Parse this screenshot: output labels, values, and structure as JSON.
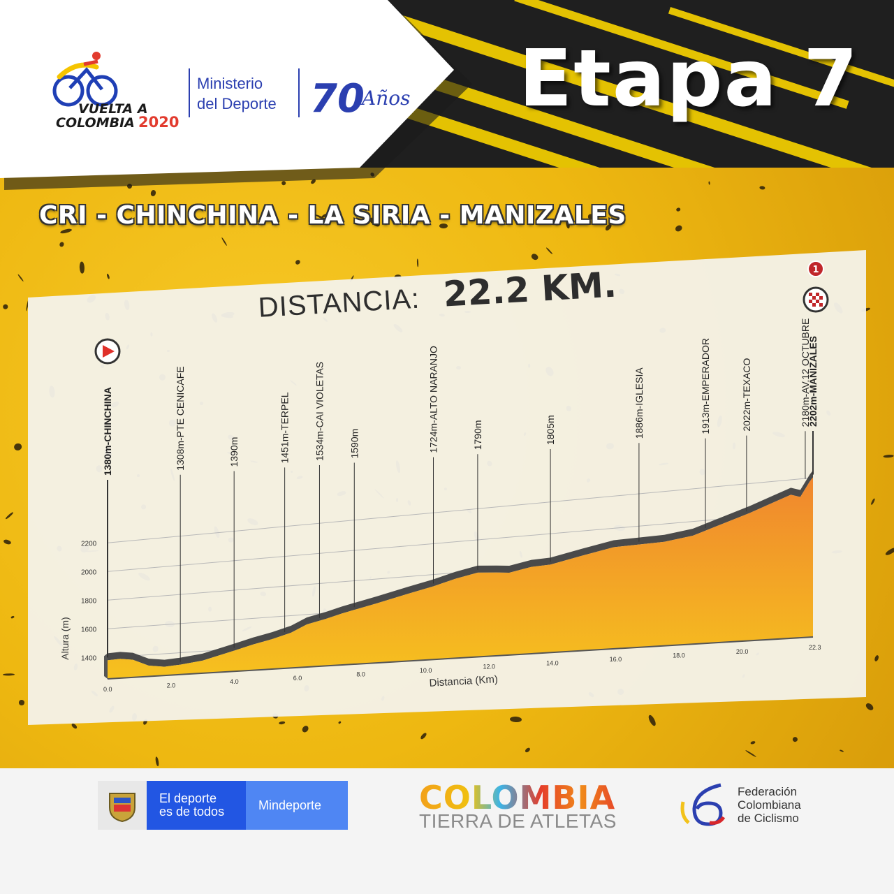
{
  "header": {
    "logo": {
      "line1": "VUELTA A",
      "line2": "COLOMBIA",
      "year": "2020"
    },
    "ministry": {
      "line1": "Ministerio",
      "line2": "del Deporte"
    },
    "anniversary": {
      "number": "70",
      "word": "Años"
    },
    "stage_label": "Etapa",
    "stage_number": "7"
  },
  "route_title": "CRI - CHINCHINA - LA SIRIA - MANIZALES",
  "distance": {
    "label": "DISTANCIA:",
    "value": "22.2 KM."
  },
  "badges": {
    "category": "1"
  },
  "chart_data": {
    "type": "area",
    "xlabel": "Distancia (Km)",
    "ylabel": "Altura (m)",
    "xlim": [
      0,
      22.3
    ],
    "ylim": [
      1250,
      2300
    ],
    "x_ticks": [
      "0.0",
      "2.0",
      "4.0",
      "6.0",
      "8.0",
      "10.0",
      "12.0",
      "14.0",
      "16.0",
      "18.0",
      "20.0",
      "22.3"
    ],
    "y_ticks": [
      "1400",
      "1600",
      "1800",
      "2000",
      "2200"
    ],
    "profile": [
      {
        "x": 0.0,
        "y": 1380
      },
      {
        "x": 0.4,
        "y": 1384
      },
      {
        "x": 0.8,
        "y": 1372
      },
      {
        "x": 1.3,
        "y": 1325
      },
      {
        "x": 1.8,
        "y": 1310
      },
      {
        "x": 2.3,
        "y": 1318
      },
      {
        "x": 3.0,
        "y": 1336
      },
      {
        "x": 4.0,
        "y": 1390
      },
      {
        "x": 4.6,
        "y": 1424
      },
      {
        "x": 5.2,
        "y": 1451
      },
      {
        "x": 5.8,
        "y": 1486
      },
      {
        "x": 6.3,
        "y": 1534
      },
      {
        "x": 6.9,
        "y": 1562
      },
      {
        "x": 7.4,
        "y": 1590
      },
      {
        "x": 8.5,
        "y": 1640
      },
      {
        "x": 9.5,
        "y": 1688
      },
      {
        "x": 10.3,
        "y": 1724
      },
      {
        "x": 11.0,
        "y": 1762
      },
      {
        "x": 11.7,
        "y": 1790
      },
      {
        "x": 12.3,
        "y": 1781
      },
      {
        "x": 12.7,
        "y": 1774
      },
      {
        "x": 13.4,
        "y": 1800
      },
      {
        "x": 14.0,
        "y": 1805
      },
      {
        "x": 15.0,
        "y": 1845
      },
      {
        "x": 16.0,
        "y": 1882
      },
      {
        "x": 16.8,
        "y": 1886
      },
      {
        "x": 17.6,
        "y": 1890
      },
      {
        "x": 18.5,
        "y": 1913
      },
      {
        "x": 19.6,
        "y": 1980
      },
      {
        "x": 20.3,
        "y": 2022
      },
      {
        "x": 21.0,
        "y": 2070
      },
      {
        "x": 21.6,
        "y": 2110
      },
      {
        "x": 21.9,
        "y": 2092
      },
      {
        "x": 22.2,
        "y": 2180
      },
      {
        "x": 22.3,
        "y": 2202
      }
    ],
    "waypoints": [
      {
        "km": 0.0,
        "label": "1380m-CHINCHINA",
        "bold": true
      },
      {
        "km": 2.3,
        "label": "1308m-PTE CENICAFE",
        "bold": false
      },
      {
        "km": 4.0,
        "label": "1390m",
        "bold": false
      },
      {
        "km": 5.6,
        "label": "1451m-TERPEL",
        "bold": false
      },
      {
        "km": 6.7,
        "label": "1534m-CAI VIOLETAS",
        "bold": false
      },
      {
        "km": 7.8,
        "label": "1590m",
        "bold": false
      },
      {
        "km": 10.3,
        "label": "1724m-ALTO NARANJO",
        "bold": false
      },
      {
        "km": 11.7,
        "label": "1790m",
        "bold": false
      },
      {
        "km": 14.0,
        "label": "1805m",
        "bold": false
      },
      {
        "km": 16.8,
        "label": "1886m-IGLESIA",
        "bold": false
      },
      {
        "km": 18.9,
        "label": "1913m-EMPERADOR",
        "bold": false
      },
      {
        "km": 20.2,
        "label": "2022m-TEXACO",
        "bold": false
      },
      {
        "km": 22.2,
        "label": "2180m-AV.12 OCTUBRE",
        "bold": false
      },
      {
        "km": 22.3,
        "label": "2202m-MANIZALES",
        "bold": true
      }
    ],
    "colors": {
      "fill_top": "#f0862e",
      "fill_bottom": "#f6c21e",
      "ridge": "#4a4a4a",
      "grid": "#b8b8b8"
    }
  },
  "footer": {
    "mindeporte": {
      "line1": "El deporte",
      "line2": "es de todos",
      "brand": "Mindeporte"
    },
    "colombia": {
      "word": "COLOMBIA",
      "tagline": "TIERRA DE ATLETAS"
    },
    "federation": {
      "line1": "Federación",
      "line2": "Colombiana",
      "line3": "de Ciclismo"
    }
  }
}
